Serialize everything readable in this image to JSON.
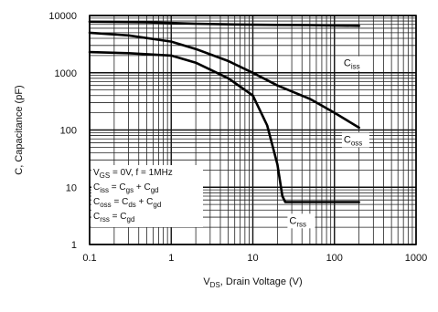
{
  "chart_data": {
    "type": "line",
    "title": "",
    "xlabel": "V_DS, Drain Voltage (V)",
    "xlabel_parts": {
      "main": "V",
      "sub": "DS",
      "rest": ", Drain Voltage (V)"
    },
    "ylabel": "C, Capacitance (pF)",
    "x_scale": "log",
    "y_scale": "log",
    "xlim": [
      0.1,
      1000
    ],
    "ylim": [
      1,
      10000
    ],
    "grid": true,
    "x_ticks": [
      0.1,
      1,
      10,
      100,
      1000
    ],
    "x_tick_labels": [
      "0.1",
      "1",
      "10",
      "100",
      "1000"
    ],
    "y_ticks": [
      1,
      10,
      100,
      1000,
      10000
    ],
    "y_tick_labels": [
      "1",
      "10",
      "100",
      "1000",
      "10000"
    ],
    "series": [
      {
        "name": "Ciss",
        "label": {
          "main": "C",
          "sub": "iss"
        },
        "label_at": [
          130,
          1300
        ],
        "x": [
          0.1,
          0.5,
          1,
          2,
          5,
          10,
          20,
          50,
          100,
          200
        ],
        "y": [
          7800,
          7600,
          7400,
          7200,
          7000,
          6900,
          6850,
          6800,
          6700,
          6600
        ]
      },
      {
        "name": "Coss",
        "label": {
          "main": "C",
          "sub": "oss"
        },
        "label_at": [
          130,
          60
        ],
        "x": [
          0.1,
          0.3,
          1,
          2,
          5,
          10,
          20,
          50,
          100,
          200
        ],
        "y": [
          5000,
          4500,
          3500,
          2600,
          1600,
          1000,
          600,
          350,
          200,
          110
        ]
      },
      {
        "name": "Crss",
        "label": {
          "main": "C",
          "sub": "rss"
        },
        "label_at": [
          28,
          2.3
        ],
        "x": [
          0.1,
          0.3,
          1,
          2,
          5,
          10,
          15,
          20,
          23,
          25,
          30,
          50,
          100,
          200
        ],
        "y": [
          2300,
          2200,
          2000,
          1500,
          800,
          400,
          120,
          25,
          7,
          5.5,
          5.5,
          5.5,
          5.5,
          5.5
        ]
      }
    ],
    "annotations": {
      "conditions": [
        {
          "parts": [
            [
              "V",
              ""
            ],
            [
              "GS",
              "sub"
            ],
            [
              " = 0V, f = 1MHz",
              ""
            ]
          ]
        },
        {
          "parts": [
            [
              "C",
              ""
            ],
            [
              "iss",
              "sub"
            ],
            [
              " = C",
              ""
            ],
            [
              "gs",
              "sub"
            ],
            [
              " + C",
              ""
            ],
            [
              "gd",
              "sub"
            ]
          ]
        },
        {
          "parts": [
            [
              "C",
              ""
            ],
            [
              "oss",
              "sub"
            ],
            [
              " = C",
              ""
            ],
            [
              "ds",
              "sub"
            ],
            [
              " + C",
              ""
            ],
            [
              "gd",
              "sub"
            ]
          ]
        },
        {
          "parts": [
            [
              "C",
              ""
            ],
            [
              "rss",
              "sub"
            ],
            [
              " = C",
              ""
            ],
            [
              "gd",
              "sub"
            ]
          ]
        }
      ]
    }
  }
}
